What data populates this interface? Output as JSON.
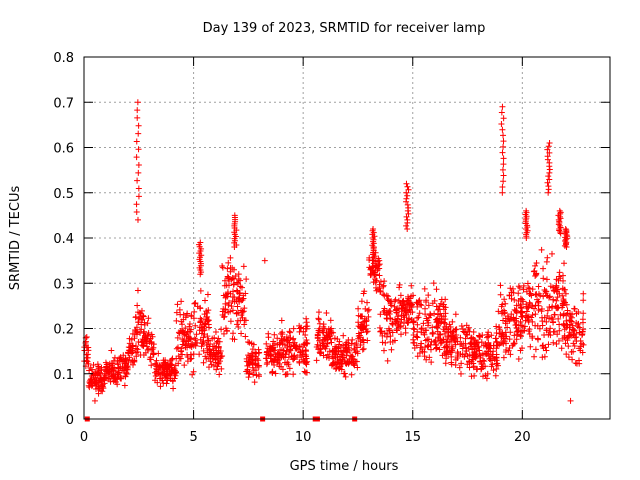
{
  "chart_data": {
    "type": "scatter",
    "title": "Day 139 of 2023, SRMTID for receiver lamp",
    "xlabel": "GPS time / hours",
    "ylabel": "SRMTID / TECUs",
    "xlim": [
      0,
      24
    ],
    "ylim": [
      0,
      0.8
    ],
    "xticks": [
      0,
      5,
      10,
      15,
      20
    ],
    "xtick_labels": [
      "0",
      "5",
      "10",
      "15",
      "20"
    ],
    "yticks": [
      0,
      0.1,
      0.2,
      0.3,
      0.4,
      0.5,
      0.6,
      0.7,
      0.8
    ],
    "ytick_labels": [
      "0",
      "0.1",
      "0.2",
      "0.3",
      "0.4",
      "0.5",
      "0.6",
      "0.7",
      "0.8"
    ],
    "grid": true,
    "marker": "plus",
    "color": "#ff0000",
    "series": [
      {
        "name": "SRMTID",
        "data_note": "approximate envelope per time segment (hours): [start, end, low, high]",
        "segments": [
          [
            0.0,
            0.2,
            0.1,
            0.21
          ],
          [
            0.2,
            1.0,
            0.04,
            0.13
          ],
          [
            1.0,
            2.0,
            0.06,
            0.16
          ],
          [
            2.0,
            2.3,
            0.08,
            0.22
          ],
          [
            2.3,
            2.7,
            0.1,
            0.3
          ],
          [
            2.7,
            3.2,
            0.1,
            0.24
          ],
          [
            3.2,
            4.2,
            0.06,
            0.15
          ],
          [
            4.2,
            5.0,
            0.08,
            0.28
          ],
          [
            5.0,
            5.7,
            0.1,
            0.3
          ],
          [
            5.7,
            6.3,
            0.07,
            0.22
          ],
          [
            6.3,
            7.4,
            0.15,
            0.38
          ],
          [
            7.4,
            8.0,
            0.06,
            0.2
          ],
          [
            8.3,
            9.0,
            0.08,
            0.2
          ],
          [
            9.0,
            10.2,
            0.08,
            0.24
          ],
          [
            10.6,
            11.3,
            0.12,
            0.25
          ],
          [
            11.3,
            12.5,
            0.08,
            0.2
          ],
          [
            12.5,
            13.0,
            0.12,
            0.3
          ],
          [
            13.0,
            13.5,
            0.25,
            0.4
          ],
          [
            13.5,
            14.5,
            0.12,
            0.33
          ],
          [
            14.5,
            15.0,
            0.18,
            0.3
          ],
          [
            15.0,
            16.5,
            0.1,
            0.32
          ],
          [
            16.5,
            18.0,
            0.08,
            0.24
          ],
          [
            18.0,
            18.9,
            0.07,
            0.22
          ],
          [
            18.9,
            19.3,
            0.1,
            0.32
          ],
          [
            19.3,
            20.2,
            0.1,
            0.35
          ],
          [
            20.2,
            22.0,
            0.1,
            0.4
          ],
          [
            22.0,
            22.8,
            0.08,
            0.3
          ]
        ],
        "spikes": [
          [
            2.45,
            0.44,
            0.7
          ],
          [
            5.3,
            0.32,
            0.39
          ],
          [
            6.9,
            0.38,
            0.45
          ],
          [
            13.2,
            0.36,
            0.42
          ],
          [
            14.75,
            0.42,
            0.52
          ],
          [
            19.1,
            0.5,
            0.69
          ],
          [
            20.2,
            0.4,
            0.46
          ],
          [
            21.2,
            0.5,
            0.61
          ],
          [
            21.7,
            0.41,
            0.46
          ],
          [
            22.0,
            0.38,
            0.42
          ]
        ],
        "outliers": [
          [
            8.25,
            0.35
          ],
          [
            22.2,
            0.04
          ],
          [
            0.5,
            0.04
          ]
        ],
        "zero_markers": [
          0.15,
          8.15,
          10.55,
          10.65,
          12.35
        ]
      }
    ]
  }
}
